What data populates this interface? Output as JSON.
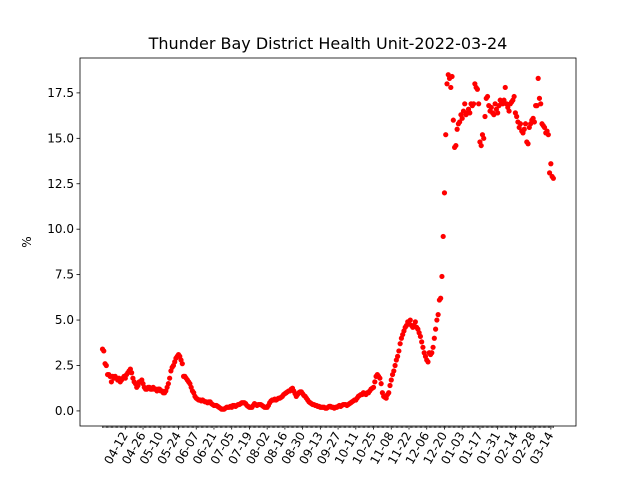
{
  "chart_data": {
    "type": "scatter",
    "title": "Thunder Bay District Health Unit-2022-03-24",
    "ylabel": "%",
    "color": "red",
    "categories": [
      null,
      null,
      null,
      null,
      null,
      null,
      null,
      null,
      null,
      null,
      null,
      null,
      null,
      null,
      null,
      null,
      null,
      null,
      "04-12",
      null,
      null,
      null,
      null,
      null,
      null,
      null,
      null,
      null,
      null,
      null,
      null,
      null,
      "04-26",
      null,
      null,
      null,
      null,
      null,
      null,
      null,
      null,
      null,
      null,
      null,
      null,
      null,
      "05-10",
      null,
      null,
      null,
      null,
      null,
      null,
      null,
      null,
      null,
      null,
      null,
      null,
      null,
      "05-24",
      null,
      null,
      null,
      null,
      null,
      null,
      null,
      null,
      null,
      null,
      null,
      null,
      null,
      "06-07",
      null,
      null,
      null,
      null,
      null,
      null,
      null,
      null,
      null,
      null,
      null,
      null,
      null,
      "06-21",
      null,
      null,
      null,
      null,
      null,
      null,
      null,
      null,
      null,
      null,
      null,
      null,
      null,
      "07-05",
      null,
      null,
      null,
      null,
      null,
      null,
      null,
      null,
      null,
      null,
      null,
      null,
      null,
      "07-19",
      null,
      null,
      null,
      null,
      null,
      null,
      null,
      null,
      null,
      null,
      null,
      null,
      null,
      "08-02",
      null,
      null,
      null,
      null,
      null,
      null,
      null,
      null,
      null,
      null,
      null,
      null,
      null,
      "08-16",
      null,
      null,
      null,
      null,
      null,
      null,
      null,
      null,
      null,
      null,
      null,
      null,
      null,
      "08-30",
      null,
      null,
      null,
      null,
      null,
      null,
      null,
      null,
      null,
      null,
      null,
      null,
      null,
      "09-13",
      null,
      null,
      null,
      null,
      null,
      null,
      null,
      null,
      null,
      null,
      null,
      null,
      null,
      "09-27",
      null,
      null,
      null,
      null,
      null,
      null,
      null,
      null,
      null,
      null,
      null,
      null,
      null,
      "10-11",
      null,
      null,
      null,
      null,
      null,
      null,
      null,
      null,
      null,
      null,
      null,
      null,
      null,
      "10-25",
      null,
      null,
      null,
      null,
      null,
      null,
      null,
      null,
      null,
      null,
      null,
      null,
      null,
      "11-08",
      null,
      null,
      null,
      null,
      null,
      null,
      null,
      null,
      null,
      null,
      null,
      null,
      null,
      "11-22",
      null,
      null,
      null,
      null,
      null,
      null,
      null,
      null,
      null,
      null,
      null,
      null,
      null,
      "12-06",
      null,
      null,
      null,
      null,
      null,
      null,
      null,
      null,
      null,
      null,
      null,
      null,
      null,
      "12-20",
      null,
      null,
      null,
      null,
      null,
      null,
      null,
      null,
      null,
      null,
      null,
      null,
      null,
      "01-03",
      null,
      null,
      null,
      null,
      null,
      null,
      null,
      null,
      null,
      null,
      null,
      null,
      null,
      "01-17",
      null,
      null,
      null,
      null,
      null,
      null,
      null,
      null,
      null,
      null,
      null,
      null,
      null,
      "01-31",
      null,
      null,
      null,
      null,
      null,
      null,
      null,
      null,
      null,
      null,
      null,
      null,
      null,
      "02-14",
      null,
      null,
      null,
      null,
      null,
      null,
      null,
      null,
      null,
      null,
      null,
      null,
      null,
      "02-28",
      null,
      null,
      null,
      null,
      null,
      null,
      null,
      null,
      null,
      null,
      null,
      null,
      null,
      "03-14",
      null,
      null
    ],
    "values": [
      3.4,
      3.3,
      2.6,
      2.5,
      2.0,
      2.0,
      1.9,
      1.6,
      1.9,
      1.8,
      1.9,
      1.8,
      1.7,
      1.8,
      1.6,
      1.7,
      1.8,
      1.9,
      1.8,
      2.0,
      2.1,
      2.2,
      2.3,
      2.1,
      1.8,
      1.6,
      1.5,
      1.3,
      1.4,
      1.6,
      1.6,
      1.7,
      1.5,
      1.3,
      1.2,
      1.2,
      1.3,
      1.3,
      1.2,
      1.2,
      1.3,
      1.2,
      1.2,
      1.1,
      1.2,
      1.2,
      1.1,
      1.1,
      1.0,
      1.0,
      1.1,
      1.3,
      1.5,
      1.8,
      2.2,
      2.4,
      2.5,
      2.7,
      2.9,
      3.0,
      3.1,
      3.0,
      2.8,
      2.6,
      1.9,
      1.9,
      1.8,
      1.7,
      1.6,
      1.5,
      1.3,
      1.1,
      1.0,
      0.8,
      0.7,
      0.65,
      0.6,
      0.6,
      0.55,
      0.6,
      0.55,
      0.5,
      0.5,
      0.45,
      0.5,
      0.5,
      0.4,
      0.35,
      0.3,
      0.3,
      0.3,
      0.25,
      0.2,
      0.15,
      0.1,
      0.1,
      0.1,
      0.15,
      0.2,
      0.2,
      0.2,
      0.25,
      0.2,
      0.3,
      0.3,
      0.25,
      0.3,
      0.35,
      0.35,
      0.4,
      0.45,
      0.45,
      0.45,
      0.4,
      0.3,
      0.25,
      0.2,
      0.2,
      0.2,
      0.3,
      0.4,
      0.35,
      0.3,
      0.35,
      0.35,
      0.35,
      0.3,
      0.25,
      0.2,
      0.2,
      0.2,
      0.3,
      0.45,
      0.55,
      0.6,
      0.6,
      0.65,
      0.6,
      0.65,
      0.7,
      0.7,
      0.75,
      0.8,
      0.9,
      0.95,
      1.0,
      1.05,
      1.1,
      1.1,
      1.2,
      1.25,
      1.1,
      0.95,
      0.8,
      0.9,
      1.0,
      1.05,
      1.05,
      0.95,
      0.85,
      0.8,
      0.7,
      0.6,
      0.5,
      0.45,
      0.4,
      0.35,
      0.35,
      0.3,
      0.3,
      0.25,
      0.25,
      0.2,
      0.2,
      0.2,
      0.2,
      0.15,
      0.15,
      0.2,
      0.25,
      0.25,
      0.2,
      0.2,
      0.15,
      0.2,
      0.2,
      0.25,
      0.3,
      0.25,
      0.3,
      0.35,
      0.35,
      0.35,
      0.3,
      0.35,
      0.4,
      0.45,
      0.5,
      0.55,
      0.6,
      0.6,
      0.7,
      0.8,
      0.85,
      0.9,
      0.9,
      1.0,
      0.95,
      0.9,
      1.0,
      1.0,
      1.1,
      1.2,
      1.25,
      1.3,
      1.6,
      1.9,
      2.0,
      1.9,
      1.8,
      1.5,
      1.0,
      0.8,
      0.75,
      0.7,
      0.9,
      1.0,
      1.4,
      1.7,
      2.0,
      2.2,
      2.5,
      2.8,
      3.0,
      3.3,
      3.7,
      4.0,
      4.2,
      4.4,
      4.6,
      4.7,
      4.9,
      4.8,
      5.0,
      4.7,
      4.6,
      4.7,
      4.9,
      4.6,
      4.5,
      4.3,
      4.1,
      3.8,
      3.5,
      3.2,
      3.0,
      2.8,
      2.7,
      3.2,
      3.1,
      3.2,
      3.5,
      4.0,
      4.5,
      5.0,
      5.3,
      6.1,
      6.2,
      7.4,
      9.6,
      12.0,
      15.2,
      18.0,
      18.5,
      18.3,
      17.8,
      18.4,
      16.0,
      14.5,
      14.6,
      15.5,
      15.8,
      15.9,
      16.3,
      16.1,
      16.5,
      16.9,
      16.3,
      16.4,
      16.6,
      16.4,
      16.9,
      16.8,
      16.9,
      18.0,
      17.8,
      17.7,
      16.9,
      14.8,
      14.6,
      15.2,
      15.0,
      16.2,
      17.2,
      17.3,
      16.8,
      16.5,
      16.7,
      16.4,
      16.3,
      16.9,
      16.6,
      16.4,
      16.8,
      17.1,
      17.0,
      16.9,
      17.1,
      17.8,
      16.9,
      16.7,
      16.5,
      16.9,
      17.0,
      17.1,
      17.3,
      16.4,
      16.2,
      15.9,
      15.6,
      15.8,
      15.4,
      15.3,
      15.5,
      15.8,
      14.8,
      14.7,
      15.6,
      15.8,
      16.0,
      16.1,
      15.9,
      16.8,
      16.8,
      18.3,
      17.2,
      16.9,
      15.8,
      15.7,
      15.6,
      15.3,
      15.4,
      15.2,
      13.1,
      13.6,
      12.9,
      12.8
    ],
    "ylim": [
      -0.83,
      19.42
    ],
    "yticks": [
      {
        "value": 0,
        "label": "0.0"
      },
      2.5,
      {
        "value": 5,
        "label": "5.0"
      },
      7.5,
      {
        "value": 10,
        "label": "10.0"
      },
      12.5,
      {
        "value": 15,
        "label": "15.0"
      },
      17.5
    ]
  }
}
